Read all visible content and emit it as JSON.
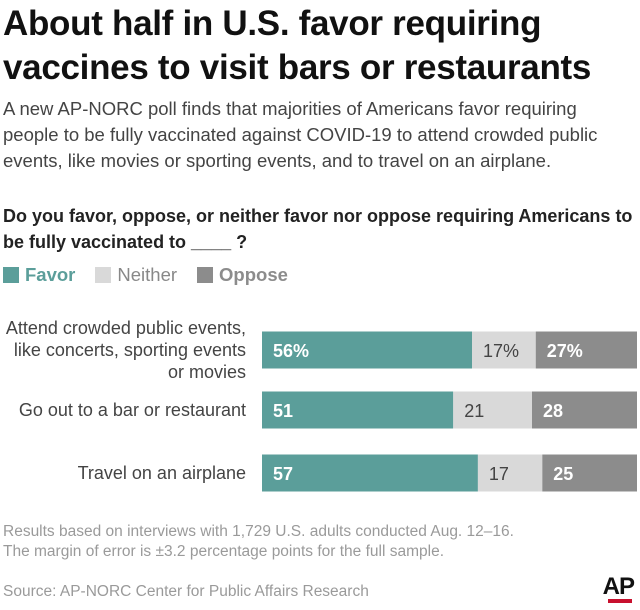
{
  "header": {
    "title_line1": "About half in U.S. favor requiring",
    "title_line2": "vaccines to visit bars or restaurants",
    "subtitle": "A new AP-NORC poll finds that majorities of Americans favor requiring people to be fully vaccinated against COVID-19 to attend crowded public events, like movies or sporting events, and to travel on an airplane.",
    "question": "Do you favor, oppose, or neither favor nor oppose requiring Americans to be fully vaccinated to ____ ?"
  },
  "legend": {
    "favor": "Favor",
    "neither": "Neither",
    "oppose": "Oppose"
  },
  "colors": {
    "favor": "#5b9e9a",
    "neither": "#d9d9d9",
    "oppose": "#8c8c8c"
  },
  "chart_data": {
    "type": "bar",
    "orientation": "horizontal",
    "stacked": true,
    "categories": [
      [
        "Attend crowded public events,",
        "like concerts, sporting events",
        "or movies"
      ],
      [
        "Go out to a bar or restaurant"
      ],
      [
        "Travel on an airplane"
      ]
    ],
    "series": [
      {
        "name": "Favor",
        "values": [
          56,
          51,
          57
        ],
        "labels": [
          "56%",
          "51",
          "57"
        ]
      },
      {
        "name": "Neither",
        "values": [
          17,
          21,
          17
        ],
        "labels": [
          "17%",
          "21",
          "17"
        ]
      },
      {
        "name": "Oppose",
        "values": [
          27,
          28,
          25
        ],
        "labels": [
          "27%",
          "28",
          "25"
        ]
      }
    ],
    "xlim": [
      0,
      100
    ],
    "unit": "percent"
  },
  "footer": {
    "note_line1": "Results based on interviews with 1,729 U.S. adults conducted Aug. 12–16.",
    "note_line2": "The margin of error is ±3.2 percentage points for the full sample.",
    "source": "Source:  AP-NORC Center for Public Affairs Research",
    "logo": "AP"
  }
}
